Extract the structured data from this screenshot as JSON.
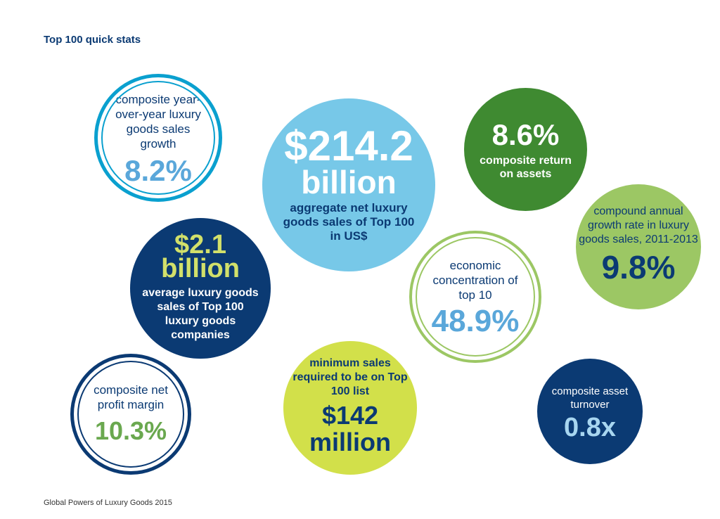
{
  "page": {
    "title": "Top 100 quick stats",
    "footer": "Global Powers of Luxury Goods 2015"
  },
  "stats": {
    "yoy_growth": {
      "label": "composite year-over-year luxury goods sales growth",
      "value": "8.2%"
    },
    "aggregate_sales": {
      "value_line1": "$214.2",
      "value_line2": "billion",
      "label": "aggregate net luxury goods sales of Top 100 in US$"
    },
    "return_on_assets": {
      "value": "8.6%",
      "label": "composite return on assets"
    },
    "cagr": {
      "label": "compound annual growth rate in luxury goods sales, 2011-2013",
      "value": "9.8%"
    },
    "average_sales": {
      "value_line1": "$2.1",
      "value_line2": "billion",
      "label": "average luxury goods sales of Top 100 luxury goods companies"
    },
    "concentration": {
      "label": "economic concentration of top 10",
      "value": "48.9%"
    },
    "net_profit_margin": {
      "label": "composite net profit margin",
      "value": "10.3%"
    },
    "minimum_sales": {
      "label": "minimum sales required to be on Top 100 list",
      "value_line1": "$142",
      "value_line2": "million"
    },
    "asset_turnover": {
      "label": "composite asset turnover",
      "value": "0.8x"
    }
  },
  "colors": {
    "navy": "#0b3a73",
    "sky_blue": "#77c8e8",
    "ring_blue": "#0aa0cf",
    "dark_green": "#3f8a31",
    "light_green": "#9cc764",
    "lime": "#d2e04a"
  }
}
